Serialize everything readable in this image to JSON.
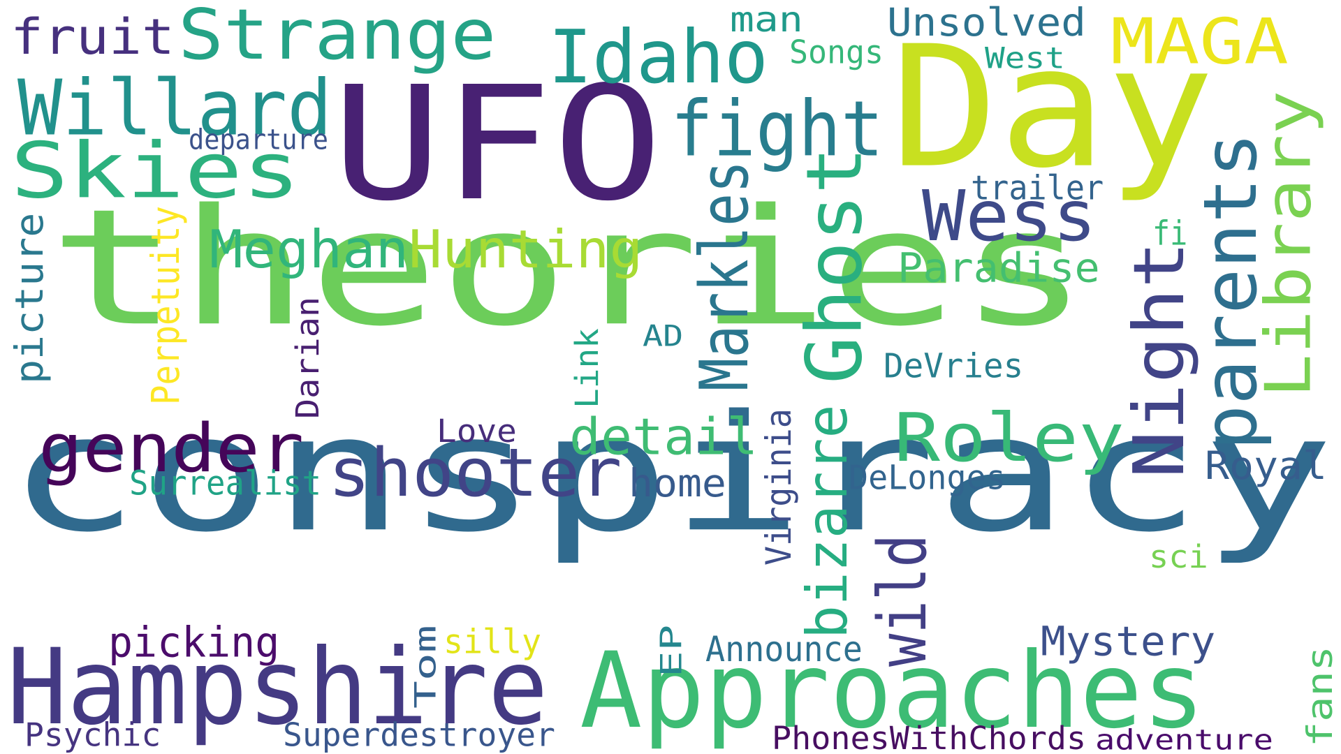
{
  "words": [
    {
      "text": "theories",
      "color": "#6ccd5a",
      "rotated": false
    },
    {
      "text": "conspiracy",
      "color": "#306a8e",
      "rotated": false
    },
    {
      "text": "UFO",
      "color": "#482173",
      "rotated": false
    },
    {
      "text": "Day",
      "color": "#c8e020",
      "rotated": false
    },
    {
      "text": "Hampshire",
      "color": "#443a83",
      "rotated": false
    },
    {
      "text": "Approaches",
      "color": "#3dbc74",
      "rotated": false
    },
    {
      "text": "Skies",
      "color": "#2cb17e",
      "rotated": false
    },
    {
      "text": "Strange",
      "color": "#25a386",
      "rotated": false
    },
    {
      "text": "Willard",
      "color": "#21918c",
      "rotated": false
    },
    {
      "text": "Idaho",
      "color": "#1f978b",
      "rotated": false
    },
    {
      "text": "MAGA",
      "color": "#ece51b",
      "rotated": false
    },
    {
      "text": "fruit",
      "color": "#46307e",
      "rotated": false
    },
    {
      "text": "man",
      "color": "#1f9a8a",
      "rotated": false
    },
    {
      "text": "Unsolved",
      "color": "#2c728e",
      "rotated": false
    },
    {
      "text": "Songs",
      "color": "#35b779",
      "rotated": false
    },
    {
      "text": "West",
      "color": "#1fa187",
      "rotated": false
    },
    {
      "text": "fight",
      "color": "#287d8e",
      "rotated": false
    },
    {
      "text": "departure",
      "color": "#3b528b",
      "rotated": false
    },
    {
      "text": "Wess",
      "color": "#3e4a89",
      "rotated": false
    },
    {
      "text": "trailer",
      "color": "#33638d",
      "rotated": false
    },
    {
      "text": "Library",
      "color": "#7ad151",
      "rotated": true
    },
    {
      "text": "parents",
      "color": "#2e6f8e",
      "rotated": true
    },
    {
      "text": "Ghost",
      "color": "#29af7f",
      "rotated": true
    },
    {
      "text": "Markles",
      "color": "#2a768e",
      "rotated": true
    },
    {
      "text": "Meghan",
      "color": "#31b57b",
      "rotated": false
    },
    {
      "text": "Hunting",
      "color": "#a8db34",
      "rotated": false
    },
    {
      "text": "Paradise",
      "color": "#44bf70",
      "rotated": false
    },
    {
      "text": "fi",
      "color": "#3aba76",
      "rotated": false
    },
    {
      "text": "Night",
      "color": "#414487",
      "rotated": true
    },
    {
      "text": "picture",
      "color": "#2a788e",
      "rotated": true
    },
    {
      "text": "Perpetuity",
      "color": "#fde725",
      "rotated": true
    },
    {
      "text": "Darian",
      "color": "#481f70",
      "rotated": true
    },
    {
      "text": "Link",
      "color": "#22a785",
      "rotated": true
    },
    {
      "text": "AD",
      "color": "#25848e",
      "rotated": false
    },
    {
      "text": "DeVries",
      "color": "#277f8e",
      "rotated": false
    },
    {
      "text": "gender",
      "color": "#450559",
      "rotated": false
    },
    {
      "text": "shooter",
      "color": "#414487",
      "rotated": false
    },
    {
      "text": "detail",
      "color": "#3fbc73",
      "rotated": false
    },
    {
      "text": "Roley",
      "color": "#38b977",
      "rotated": false
    },
    {
      "text": "Royal",
      "color": "#365d8d",
      "rotated": false
    },
    {
      "text": "Love",
      "color": "#472d7b",
      "rotated": false
    },
    {
      "text": "Surrealist",
      "color": "#20a386",
      "rotated": false
    },
    {
      "text": "home",
      "color": "#375a8c",
      "rotated": false
    },
    {
      "text": "Virginia",
      "color": "#3d4d8a",
      "rotated": true
    },
    {
      "text": "bizarre",
      "color": "#26ad81",
      "rotated": true
    },
    {
      "text": "DeLonges",
      "color": "#32648e",
      "rotated": false
    },
    {
      "text": "wild",
      "color": "#423f85",
      "rotated": true
    },
    {
      "text": "sci",
      "color": "#77d153",
      "rotated": false
    },
    {
      "text": "picking",
      "color": "#4b0c6b",
      "rotated": false
    },
    {
      "text": "silly",
      "color": "#e2e418",
      "rotated": false
    },
    {
      "text": "Tom",
      "color": "#34618d",
      "rotated": true
    },
    {
      "text": "EP",
      "color": "#24878e",
      "rotated": true
    },
    {
      "text": "Announce",
      "color": "#2d708e",
      "rotated": false
    },
    {
      "text": "Mystery",
      "color": "#3c508b",
      "rotated": false
    },
    {
      "text": "fans",
      "color": "#4ec36b",
      "rotated": true
    },
    {
      "text": "Psychic",
      "color": "#463480",
      "rotated": false
    },
    {
      "text": "Superdestroyer",
      "color": "#39568c",
      "rotated": false
    },
    {
      "text": "PhonesWithChords",
      "color": "#470e61",
      "rotated": false
    },
    {
      "text": "adventure",
      "color": "#4a0c6b",
      "rotated": false
    }
  ]
}
